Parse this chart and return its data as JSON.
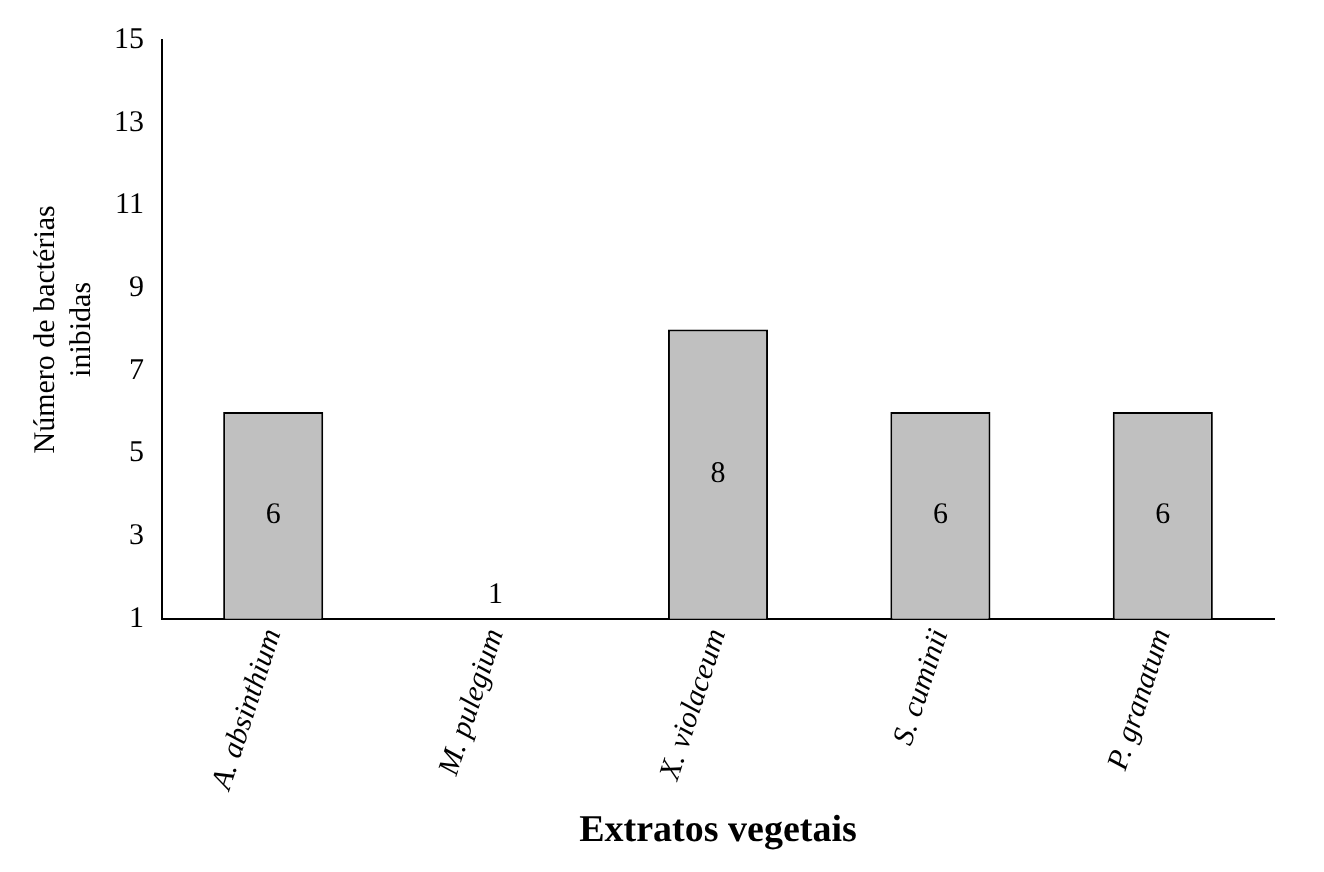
{
  "chart_data": {
    "type": "bar",
    "xlabel": "Extratos vegetais",
    "ylabel": "Número de bactérias inibidas",
    "categories": [
      "A. absinthium",
      "M. pulegium",
      "X. violaceum",
      "S. cuminii",
      "P. granatum"
    ],
    "values": [
      6,
      1,
      8,
      6,
      6
    ],
    "color": "#c0c0c0",
    "ylim": [
      1,
      15
    ],
    "yticks": [
      1,
      3,
      5,
      7,
      9,
      11,
      13,
      15
    ],
    "grid": false,
    "legend": false,
    "data_labels": true
  }
}
